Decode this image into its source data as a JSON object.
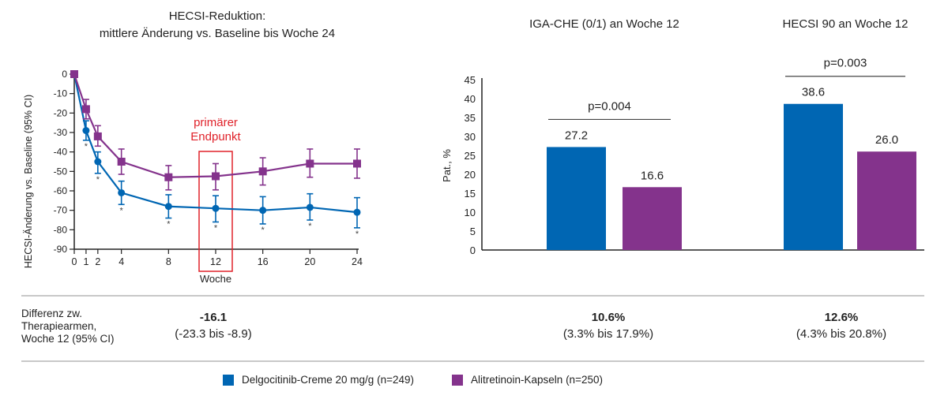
{
  "colors": {
    "delgocitinib": "#0066b3",
    "alitretinoin": "#84338c",
    "endpoint": "#e0222a",
    "axis": "#222222",
    "divider": "#c8c8c8"
  },
  "chart_data": [
    {
      "type": "line",
      "title_line1": "HECSI-Reduktion:",
      "title_line2": "mittlere Änderung vs. Baseline bis Woche 24",
      "xlabel": "Woche",
      "ylabel": "HECSI-Änderung vs. Baseline (95% CI)",
      "x": [
        0,
        1,
        2,
        4,
        8,
        12,
        16,
        20,
        24
      ],
      "x_ticks": [
        "0",
        "1",
        "2",
        "4",
        "8",
        "12",
        "16",
        "20",
        "24"
      ],
      "y_ticks": [
        "0",
        "-10",
        "-20",
        "-30",
        "-40",
        "-50",
        "-60",
        "-70",
        "-80",
        "-90"
      ],
      "ylim": [
        -90,
        0
      ],
      "xlim": [
        0,
        24
      ],
      "series": [
        {
          "name": "Delgocitinib-Creme 20 mg/g (n=249)",
          "marker": "circle",
          "values": [
            0,
            -29,
            -45,
            -61,
            -68,
            -69,
            -70,
            -68.5,
            -71
          ],
          "ci_low": [
            0,
            -34,
            -51,
            -67,
            -74,
            -76,
            -77,
            -75,
            -79
          ],
          "ci_high": [
            0,
            -24,
            -40,
            -55,
            -62,
            -62.5,
            -63,
            -61.5,
            -63.5
          ],
          "significant": [
            false,
            true,
            true,
            true,
            true,
            true,
            true,
            true,
            true
          ]
        },
        {
          "name": "Alitretinoin-Kapseln (n=250)",
          "marker": "square",
          "values": [
            0,
            -18,
            -32,
            -45,
            -53,
            -52.5,
            -50,
            -46,
            -46
          ],
          "ci_low": [
            0,
            -23,
            -37,
            -51.5,
            -59.5,
            -59.5,
            -57,
            -53,
            -53.5
          ],
          "ci_high": [
            0,
            -13,
            -26.5,
            -38.5,
            -47,
            -46,
            -43,
            -38.5,
            -38.5
          ]
        }
      ],
      "significance_marker": "*",
      "annotation": {
        "line1": "primärer",
        "line2": "Endpunkt",
        "week": 12
      }
    },
    {
      "type": "bar",
      "title": "IGA-CHE (0/1) an Woche 12",
      "ylabel": "Pat., %",
      "y_ticks": [
        "0",
        "5",
        "10",
        "15",
        "20",
        "25",
        "30",
        "35",
        "40",
        "45"
      ],
      "ylim": [
        0,
        45
      ],
      "series": [
        {
          "name": "Delgocitinib-Creme 20 mg/g (n=249)",
          "value": 27.2,
          "label": "27.2"
        },
        {
          "name": "Alitretinoin-Kapseln (n=250)",
          "value": 16.6,
          "label": "16.6"
        }
      ],
      "p_value": "p=0.004"
    },
    {
      "type": "bar",
      "title": "HECSI 90 an Woche 12",
      "ylabel": "Pat., %",
      "ylim": [
        0,
        45
      ],
      "series": [
        {
          "name": "Delgocitinib-Creme 20 mg/g (n=249)",
          "value": 38.6,
          "label": "38.6"
        },
        {
          "name": "Alitretinoin-Kapseln (n=250)",
          "value": 26.0,
          "label": "26.0"
        }
      ],
      "p_value": "p=0.003"
    }
  ],
  "differences": {
    "label_line1": "Differenz zw.",
    "label_line2": "Therapiearmen,",
    "label_line3": "Woche 12 (95% CI)",
    "hecsi": {
      "value": "-16.1",
      "ci": "(-23.3 bis -8.9)"
    },
    "iga": {
      "value": "10.6%",
      "ci": "(3.3% bis 17.9%)"
    },
    "hecsi90": {
      "value": "12.6%",
      "ci": "(4.3% bis 20.8%)"
    }
  },
  "legend": [
    {
      "label": "Delgocitinib-Creme 20 mg/g (n=249)",
      "color": "#0066b3"
    },
    {
      "label": "Alitretinoin-Kapseln (n=250)",
      "color": "#84338c"
    }
  ]
}
